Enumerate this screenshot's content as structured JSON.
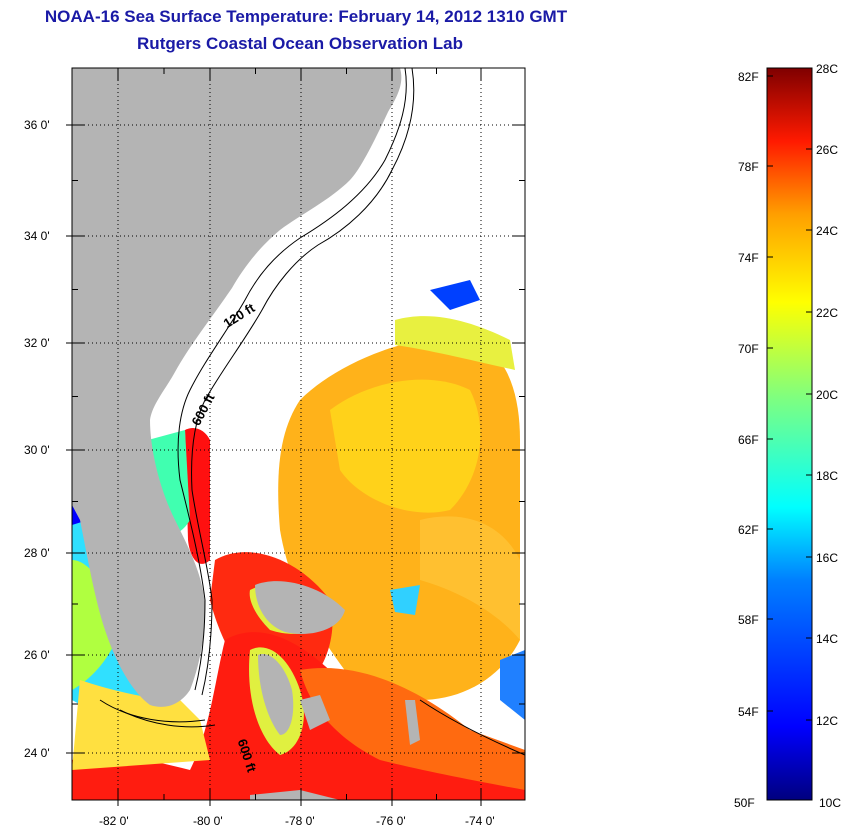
{
  "title": "NOAA-16 Sea Surface Temperature:  February 14, 2012 1310 GMT",
  "subtitle": "Rutgers Coastal Ocean Observation Lab",
  "map": {
    "lat_ticks": [
      "36 0'",
      "34 0'",
      "32 0'",
      "30 0'",
      "28 0'",
      "26 0'",
      "24 0'"
    ],
    "lon_ticks": [
      "-82 0'",
      "-80 0'",
      "-78 0'",
      "-76 0'",
      "-74 0'"
    ],
    "isobaths": [
      "120 ft",
      "600 ft",
      "600 ft"
    ]
  },
  "colorbar": {
    "fahrenheit": [
      "82F",
      "78F",
      "74F",
      "70F",
      "66F",
      "62F",
      "58F",
      "54F",
      "50F"
    ],
    "celsius": [
      "28C",
      "26C",
      "24C",
      "22C",
      "20C",
      "18C",
      "16C",
      "14C",
      "12C",
      "10C"
    ],
    "colors": [
      "#00007f",
      "#0000ff",
      "#007fff",
      "#00ffff",
      "#7fff7f",
      "#ffff00",
      "#ff7f00",
      "#ff0000",
      "#7f0000"
    ]
  },
  "colors": {
    "land": "#b4b4b4",
    "title_text": "#1a1aa6"
  }
}
